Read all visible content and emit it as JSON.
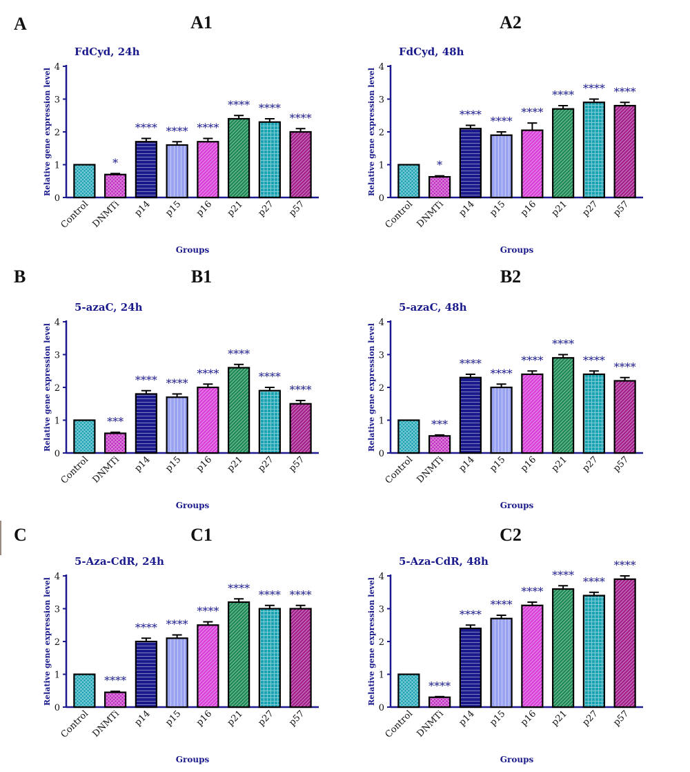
{
  "figure": {
    "rows": [
      {
        "letter": "A",
        "panels": [
          "A1",
          "A2"
        ]
      },
      {
        "letter": "B",
        "panels": [
          "B1",
          "B2"
        ]
      },
      {
        "letter": "C",
        "panels": [
          "C1",
          "C2"
        ]
      }
    ]
  },
  "style": {
    "axis_color": "#1a1a8c",
    "text_color": "#1a1a8c",
    "bar_colors": [
      "#1aa3b3",
      "#c02bc0",
      "#1a1a8c",
      "#9aa3f2",
      "#d83fd8",
      "#1d8a55",
      "#1aa3b3",
      "#a3208c"
    ],
    "bar_patterns": [
      "diamond",
      "diamond",
      "hline",
      "vline",
      "diag",
      "diag",
      "grid",
      "diag"
    ]
  },
  "chart_data": [
    {
      "panel": "A1",
      "type": "bar",
      "title": "FdCyd, 24h",
      "xlabel": "Groups",
      "ylabel": "Relative gene expression level",
      "ylim": [
        0,
        4
      ],
      "yticks": [
        0,
        1,
        2,
        3,
        4
      ],
      "categories": [
        "Control",
        "DNMTi",
        "p14",
        "p15",
        "p16",
        "p21",
        "p27",
        "p57"
      ],
      "values": [
        1.0,
        0.7,
        1.7,
        1.6,
        1.7,
        2.4,
        2.3,
        2.0
      ],
      "errors": [
        0,
        0.03,
        0.1,
        0.1,
        0.1,
        0.1,
        0.1,
        0.1
      ],
      "significance": [
        "",
        "*",
        "****",
        "****",
        "****",
        "****",
        "****",
        "****"
      ]
    },
    {
      "panel": "A2",
      "type": "bar",
      "title": "FdCyd, 48h",
      "xlabel": "Groups",
      "ylabel": "Relative gene expression level",
      "ylim": [
        0,
        4
      ],
      "yticks": [
        0,
        1,
        2,
        3,
        4
      ],
      "categories": [
        "Control",
        "DNMTi",
        "p14",
        "p15",
        "p16",
        "p21",
        "p27",
        "p57"
      ],
      "values": [
        1.0,
        0.63,
        2.1,
        1.9,
        2.05,
        2.7,
        2.9,
        2.8
      ],
      "errors": [
        0,
        0.03,
        0.1,
        0.1,
        0.22,
        0.1,
        0.1,
        0.1
      ],
      "significance": [
        "",
        "*",
        "****",
        "****",
        "****",
        "****",
        "****",
        "****"
      ]
    },
    {
      "panel": "B1",
      "type": "bar",
      "title": "5-azaC, 24h",
      "xlabel": "Groups",
      "ylabel": "Relative gene expression level",
      "ylim": [
        0,
        4
      ],
      "yticks": [
        0,
        1,
        2,
        3,
        4
      ],
      "categories": [
        "Control",
        "DNMTi",
        "p14",
        "p15",
        "p16",
        "p21",
        "p27",
        "p57"
      ],
      "values": [
        1.0,
        0.6,
        1.8,
        1.7,
        2.0,
        2.6,
        1.9,
        1.5
      ],
      "errors": [
        0,
        0.03,
        0.1,
        0.1,
        0.1,
        0.1,
        0.1,
        0.1
      ],
      "significance": [
        "",
        "***",
        "****",
        "****",
        "****",
        "****",
        "****",
        "****"
      ]
    },
    {
      "panel": "B2",
      "type": "bar",
      "title": "5-azaC, 48h",
      "xlabel": "Groups",
      "ylabel": "Relative gene expression level",
      "ylim": [
        0,
        4
      ],
      "yticks": [
        0,
        1,
        2,
        3,
        4
      ],
      "categories": [
        "Control",
        "DNMTi",
        "p14",
        "p15",
        "p16",
        "p21",
        "p27",
        "p57"
      ],
      "values": [
        1.0,
        0.52,
        2.3,
        2.0,
        2.4,
        2.9,
        2.4,
        2.2
      ],
      "errors": [
        0,
        0.03,
        0.1,
        0.1,
        0.1,
        0.1,
        0.1,
        0.1
      ],
      "significance": [
        "",
        "***",
        "****",
        "****",
        "****",
        "****",
        "****",
        "****"
      ]
    },
    {
      "panel": "C1",
      "type": "bar",
      "title": "5-Aza-CdR, 24h",
      "xlabel": "Groups",
      "ylabel": "Relative gene expression level",
      "ylim": [
        0,
        4
      ],
      "yticks": [
        0,
        1,
        2,
        3,
        4
      ],
      "categories": [
        "Control",
        "DNMTi",
        "p14",
        "p15",
        "p16",
        "p21",
        "p27",
        "p57"
      ],
      "values": [
        1.0,
        0.45,
        2.0,
        2.1,
        2.5,
        3.2,
        3.0,
        3.0
      ],
      "errors": [
        0,
        0.03,
        0.1,
        0.1,
        0.1,
        0.1,
        0.1,
        0.1
      ],
      "significance": [
        "",
        "****",
        "****",
        "****",
        "****",
        "****",
        "****",
        "****"
      ]
    },
    {
      "panel": "C2",
      "type": "bar",
      "title": "5-Aza-CdR, 48h",
      "xlabel": "Groups",
      "ylabel": "Relative gene expression level",
      "ylim": [
        0,
        4
      ],
      "yticks": [
        0,
        1,
        2,
        3,
        4
      ],
      "categories": [
        "Control",
        "DNMTi",
        "p14",
        "p15",
        "p16",
        "p21",
        "p27",
        "p57"
      ],
      "values": [
        1.0,
        0.3,
        2.4,
        2.7,
        3.1,
        3.6,
        3.4,
        3.9
      ],
      "errors": [
        0,
        0.02,
        0.1,
        0.1,
        0.1,
        0.1,
        0.1,
        0.1
      ],
      "significance": [
        "",
        "****",
        "****",
        "****",
        "****",
        "****",
        "****",
        "****"
      ]
    }
  ]
}
